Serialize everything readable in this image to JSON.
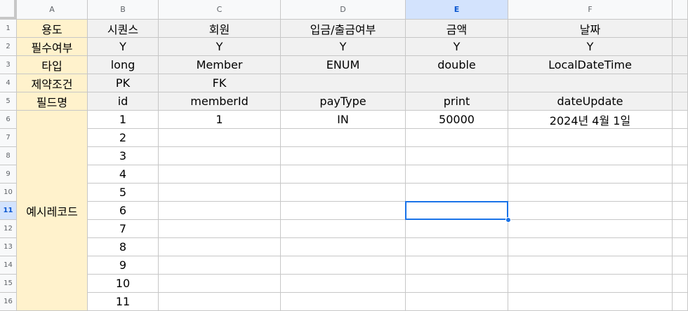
{
  "columns": [
    "A",
    "B",
    "C",
    "D",
    "E",
    "F"
  ],
  "active_column": "E",
  "active_row": "11",
  "row_numbers": [
    "1",
    "2",
    "3",
    "4",
    "5",
    "6",
    "7",
    "8",
    "9",
    "10",
    "11",
    "12",
    "13",
    "14",
    "15",
    "16"
  ],
  "header_rows": [
    [
      "용도",
      "시퀀스",
      "회원",
      "입금/출금여부",
      "금액",
      "날짜"
    ],
    [
      "필수여부",
      "Y",
      "Y",
      "Y",
      "Y",
      "Y"
    ],
    [
      "타입",
      "long",
      "Member",
      "ENUM",
      "double",
      "LocalDateTime"
    ],
    [
      "제약조건",
      "PK",
      "FK",
      "",
      "",
      ""
    ],
    [
      "필드명",
      "id",
      "memberId",
      "payType",
      "print",
      "dateUpdate"
    ]
  ],
  "example_label": "예시레코드",
  "example_rows": [
    [
      "1",
      "1",
      "IN",
      "50000",
      "2024년 4월 1일"
    ],
    [
      "2",
      "",
      "",
      "",
      ""
    ],
    [
      "3",
      "",
      "",
      "",
      ""
    ],
    [
      "4",
      "",
      "",
      "",
      ""
    ],
    [
      "5",
      "",
      "",
      "",
      ""
    ],
    [
      "6",
      "",
      "",
      "",
      ""
    ],
    [
      "7",
      "",
      "",
      "",
      ""
    ],
    [
      "8",
      "",
      "",
      "",
      ""
    ],
    [
      "9",
      "",
      "",
      "",
      ""
    ],
    [
      "10",
      "",
      "",
      "",
      ""
    ],
    [
      "11",
      "",
      "",
      "",
      ""
    ]
  ],
  "colors": {
    "header_fill": "#f1f1f1",
    "label_fill": "#fff2cc",
    "selection": "#1a73e8",
    "active_header": "#d3e3fd"
  }
}
